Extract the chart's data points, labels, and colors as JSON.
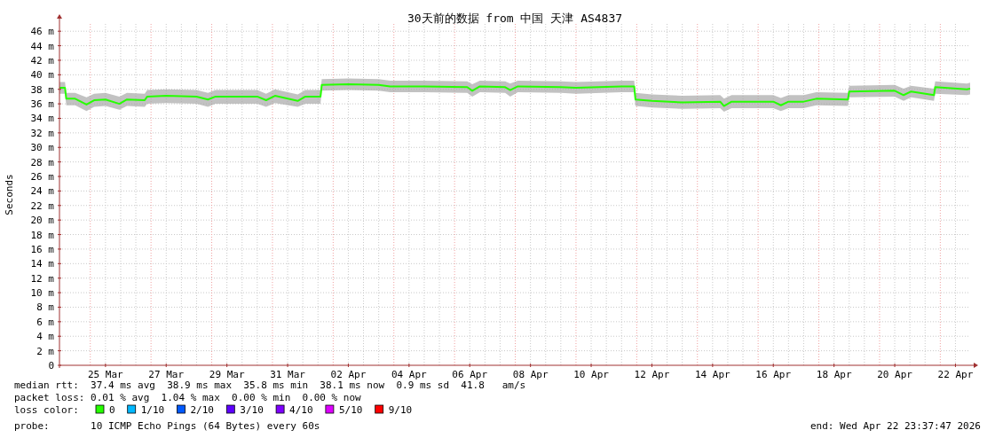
{
  "chart_data": {
    "type": "line",
    "title": "30天前的数据 from 中国 天津 AS4837",
    "ylabel": "Seconds",
    "xlim": [
      "2026-03-23T23:37",
      "2026-04-22T23:37"
    ],
    "ylim": [
      0,
      47
    ],
    "xticks": [
      {
        "value": "2026-03-25T12:00",
        "label": "25 Mar"
      },
      {
        "value": "2026-03-27T12:00",
        "label": "27 Mar"
      },
      {
        "value": "2026-03-29T12:00",
        "label": "29 Mar"
      },
      {
        "value": "2026-03-31T12:00",
        "label": "31 Mar"
      },
      {
        "value": "2026-04-02T12:00",
        "label": "02 Apr"
      },
      {
        "value": "2026-04-04T12:00",
        "label": "04 Apr"
      },
      {
        "value": "2026-04-06T12:00",
        "label": "06 Apr"
      },
      {
        "value": "2026-04-08T12:00",
        "label": "08 Apr"
      },
      {
        "value": "2026-04-10T12:00",
        "label": "10 Apr"
      },
      {
        "value": "2026-04-12T12:00",
        "label": "12 Apr"
      },
      {
        "value": "2026-04-14T12:00",
        "label": "14 Apr"
      },
      {
        "value": "2026-04-16T12:00",
        "label": "16 Apr"
      },
      {
        "value": "2026-04-18T12:00",
        "label": "18 Apr"
      },
      {
        "value": "2026-04-20T12:00",
        "label": "20 Apr"
      },
      {
        "value": "2026-04-22T12:00",
        "label": "22 Apr"
      }
    ],
    "yticks": [
      0,
      {
        "value": 2,
        "label": "2 m"
      },
      {
        "value": 4,
        "label": "4 m"
      },
      {
        "value": 6,
        "label": "6 m"
      },
      {
        "value": 8,
        "label": "8 m"
      },
      {
        "value": 10,
        "label": "10 m"
      },
      {
        "value": 12,
        "label": "12 m"
      },
      {
        "value": 14,
        "label": "14 m"
      },
      {
        "value": 16,
        "label": "16 m"
      },
      {
        "value": 18,
        "label": "18 m"
      },
      {
        "value": 20,
        "label": "20 m"
      },
      {
        "value": 22,
        "label": "22 m"
      },
      {
        "value": 24,
        "label": "24 m"
      },
      {
        "value": 26,
        "label": "26 m"
      },
      {
        "value": 28,
        "label": "28 m"
      },
      {
        "value": 30,
        "label": "30 m"
      },
      {
        "value": 32,
        "label": "32 m"
      },
      {
        "value": 34,
        "label": "34 m"
      },
      {
        "value": 36,
        "label": "36 m"
      },
      {
        "value": 38,
        "label": "38 m"
      },
      {
        "value": 40,
        "label": "40 m"
      },
      {
        "value": 42,
        "label": "42 m"
      },
      {
        "value": 44,
        "label": "44 m"
      },
      {
        "value": 46,
        "label": "46 m"
      }
    ],
    "grid": true,
    "legend": "bottom left",
    "legend_title": "loss color:",
    "series": [
      {
        "name": "0",
        "color": "#26ff00",
        "x": [
          "2026-03-23T23:40",
          "2026-03-24T04:00",
          "2026-03-24T05:00",
          "2026-03-24T12:00",
          "2026-03-24T21:00",
          "2026-03-25T03:00",
          "2026-03-25T12:00",
          "2026-03-25T23:00",
          "2026-03-26T05:00",
          "2026-03-26T19:00",
          "2026-03-26T21:00",
          "2026-03-27T12:00",
          "2026-03-28T12:00",
          "2026-03-28T21:00",
          "2026-03-29T03:00",
          "2026-03-29T20:00",
          "2026-03-30T12:00",
          "2026-03-30T19:00",
          "2026-03-31T02:00",
          "2026-03-31T20:00",
          "2026-04-01T02:00",
          "2026-04-01T14:00",
          "2026-04-01T15:00",
          "2026-04-02T12:00",
          "2026-04-03T12:00",
          "2026-04-03T21:00",
          "2026-04-05T00:00",
          "2026-04-06T10:00",
          "2026-04-06T14:00",
          "2026-04-06T20:00",
          "2026-04-07T16:00",
          "2026-04-07T20:00",
          "2026-04-08T02:00",
          "2026-04-09T12:00",
          "2026-04-10T00:00",
          "2026-04-11T12:00",
          "2026-04-11T22:00",
          "2026-04-11T23:00",
          "2026-04-12T12:00",
          "2026-04-13T12:00",
          "2026-04-14T18:00",
          "2026-04-14T21:00",
          "2026-04-15T03:00",
          "2026-04-16T12:00",
          "2026-04-16T18:00",
          "2026-04-17T00:00",
          "2026-04-17T12:00",
          "2026-04-17T22:00",
          "2026-04-18T23:00",
          "2026-04-19T00:00",
          "2026-04-20T12:00",
          "2026-04-20T19:00",
          "2026-04-21T01:00",
          "2026-04-21T19:00",
          "2026-04-21T20:00",
          "2026-04-22T21:00",
          "2026-04-22T23:37"
        ],
        "values": [
          38.2,
          38.2,
          36.7,
          36.7,
          35.9,
          36.5,
          36.6,
          36.0,
          36.6,
          36.5,
          37.0,
          37.1,
          37.0,
          36.6,
          37.0,
          37.0,
          37.0,
          36.5,
          37.1,
          36.4,
          37.0,
          37.0,
          38.6,
          38.7,
          38.6,
          38.4,
          38.4,
          38.3,
          37.8,
          38.4,
          38.3,
          37.9,
          38.4,
          38.3,
          38.2,
          38.4,
          38.4,
          36.6,
          36.4,
          36.2,
          36.3,
          35.7,
          36.3,
          36.3,
          35.8,
          36.3,
          36.3,
          36.7,
          36.6,
          37.7,
          37.8,
          37.2,
          37.7,
          37.2,
          38.3,
          38.0,
          38.1
        ],
        "lower": [
          37.4,
          37.4,
          35.8,
          35.8,
          35.0,
          35.6,
          35.7,
          35.2,
          35.7,
          35.6,
          36.0,
          36.1,
          36.0,
          35.6,
          36.0,
          36.0,
          36.0,
          35.6,
          36.1,
          35.6,
          36.0,
          36.0,
          37.8,
          37.9,
          37.8,
          37.6,
          37.6,
          37.5,
          37.0,
          37.6,
          37.5,
          37.0,
          37.6,
          37.5,
          37.4,
          37.6,
          37.6,
          35.7,
          35.5,
          35.3,
          35.4,
          34.9,
          35.4,
          35.4,
          35.0,
          35.4,
          35.4,
          35.8,
          35.7,
          36.9,
          37.0,
          36.4,
          36.9,
          36.4,
          37.4,
          37.2,
          37.3
        ],
        "upper": [
          39.0,
          39.0,
          37.5,
          37.5,
          36.9,
          37.4,
          37.5,
          37.0,
          37.5,
          37.4,
          37.9,
          38.0,
          37.9,
          37.5,
          37.9,
          37.9,
          37.9,
          37.4,
          38.0,
          37.3,
          37.9,
          37.9,
          39.4,
          39.5,
          39.4,
          39.2,
          39.2,
          39.1,
          38.7,
          39.2,
          39.1,
          38.8,
          39.2,
          39.1,
          39.0,
          39.2,
          39.2,
          37.5,
          37.3,
          37.1,
          37.2,
          36.7,
          37.2,
          37.2,
          36.8,
          37.2,
          37.2,
          37.6,
          37.5,
          38.5,
          38.6,
          38.1,
          38.5,
          38.1,
          39.1,
          38.8,
          38.9
        ]
      },
      {
        "name": "1/10",
        "color": "#00b8ff"
      },
      {
        "name": "2/10",
        "color": "#0059ff"
      },
      {
        "name": "3/10",
        "color": "#5e00ff"
      },
      {
        "name": "4/10",
        "color": "#7e00ff"
      },
      {
        "name": "5/10",
        "color": "#dd00ff"
      },
      {
        "name": "9/10",
        "color": "#ff0000"
      }
    ],
    "ref_lines": [
      {
        "axis": "x",
        "value": "2026-03-25T00:00",
        "color": "#f0a0a0",
        "line_style": "dotted"
      },
      {
        "axis": "x",
        "value": "2026-03-27T00:00",
        "color": "#f0a0a0",
        "line_style": "dotted"
      },
      {
        "axis": "x",
        "value": "2026-03-29T00:00",
        "color": "#f0a0a0",
        "line_style": "dotted"
      },
      {
        "axis": "x",
        "value": "2026-03-31T00:00",
        "color": "#f0a0a0",
        "line_style": "dotted"
      },
      {
        "axis": "x",
        "value": "2026-04-02T00:00",
        "color": "#f0a0a0",
        "line_style": "dotted"
      },
      {
        "axis": "x",
        "value": "2026-04-04T00:00",
        "color": "#f0a0a0",
        "line_style": "dotted"
      },
      {
        "axis": "x",
        "value": "2026-04-06T00:00",
        "color": "#f0a0a0",
        "line_style": "dotted"
      },
      {
        "axis": "x",
        "value": "2026-04-08T00:00",
        "color": "#f0a0a0",
        "line_style": "dotted"
      },
      {
        "axis": "x",
        "value": "2026-04-10T00:00",
        "color": "#f0a0a0",
        "line_style": "dotted"
      },
      {
        "axis": "x",
        "value": "2026-04-12T00:00",
        "color": "#f0a0a0",
        "line_style": "dotted"
      },
      {
        "axis": "x",
        "value": "2026-04-14T00:00",
        "color": "#f0a0a0",
        "line_style": "dotted"
      },
      {
        "axis": "x",
        "value": "2026-04-16T00:00",
        "color": "#f0a0a0",
        "line_style": "dotted"
      },
      {
        "axis": "x",
        "value": "2026-04-18T00:00",
        "color": "#f0a0a0",
        "line_style": "dotted"
      },
      {
        "axis": "x",
        "value": "2026-04-20T00:00",
        "color": "#f0a0a0",
        "line_style": "dotted"
      },
      {
        "axis": "x",
        "value": "2026-04-22T00:00",
        "color": "#f0a0a0",
        "line_style": "dotted"
      }
    ],
    "annotations": [
      "median rtt:  37.4 ms avg  38.9 ms max  35.8 ms min  38.1 ms now  0.9 ms sd  41.8   am/s",
      "packet loss: 0.01 % avg  1.04 % max  0.00 % min  0.00 % now",
      "probe:       10 ICMP Echo Pings (64 Bytes) every 60s",
      "end: Wed Apr 22 23:37:47 2026"
    ]
  }
}
